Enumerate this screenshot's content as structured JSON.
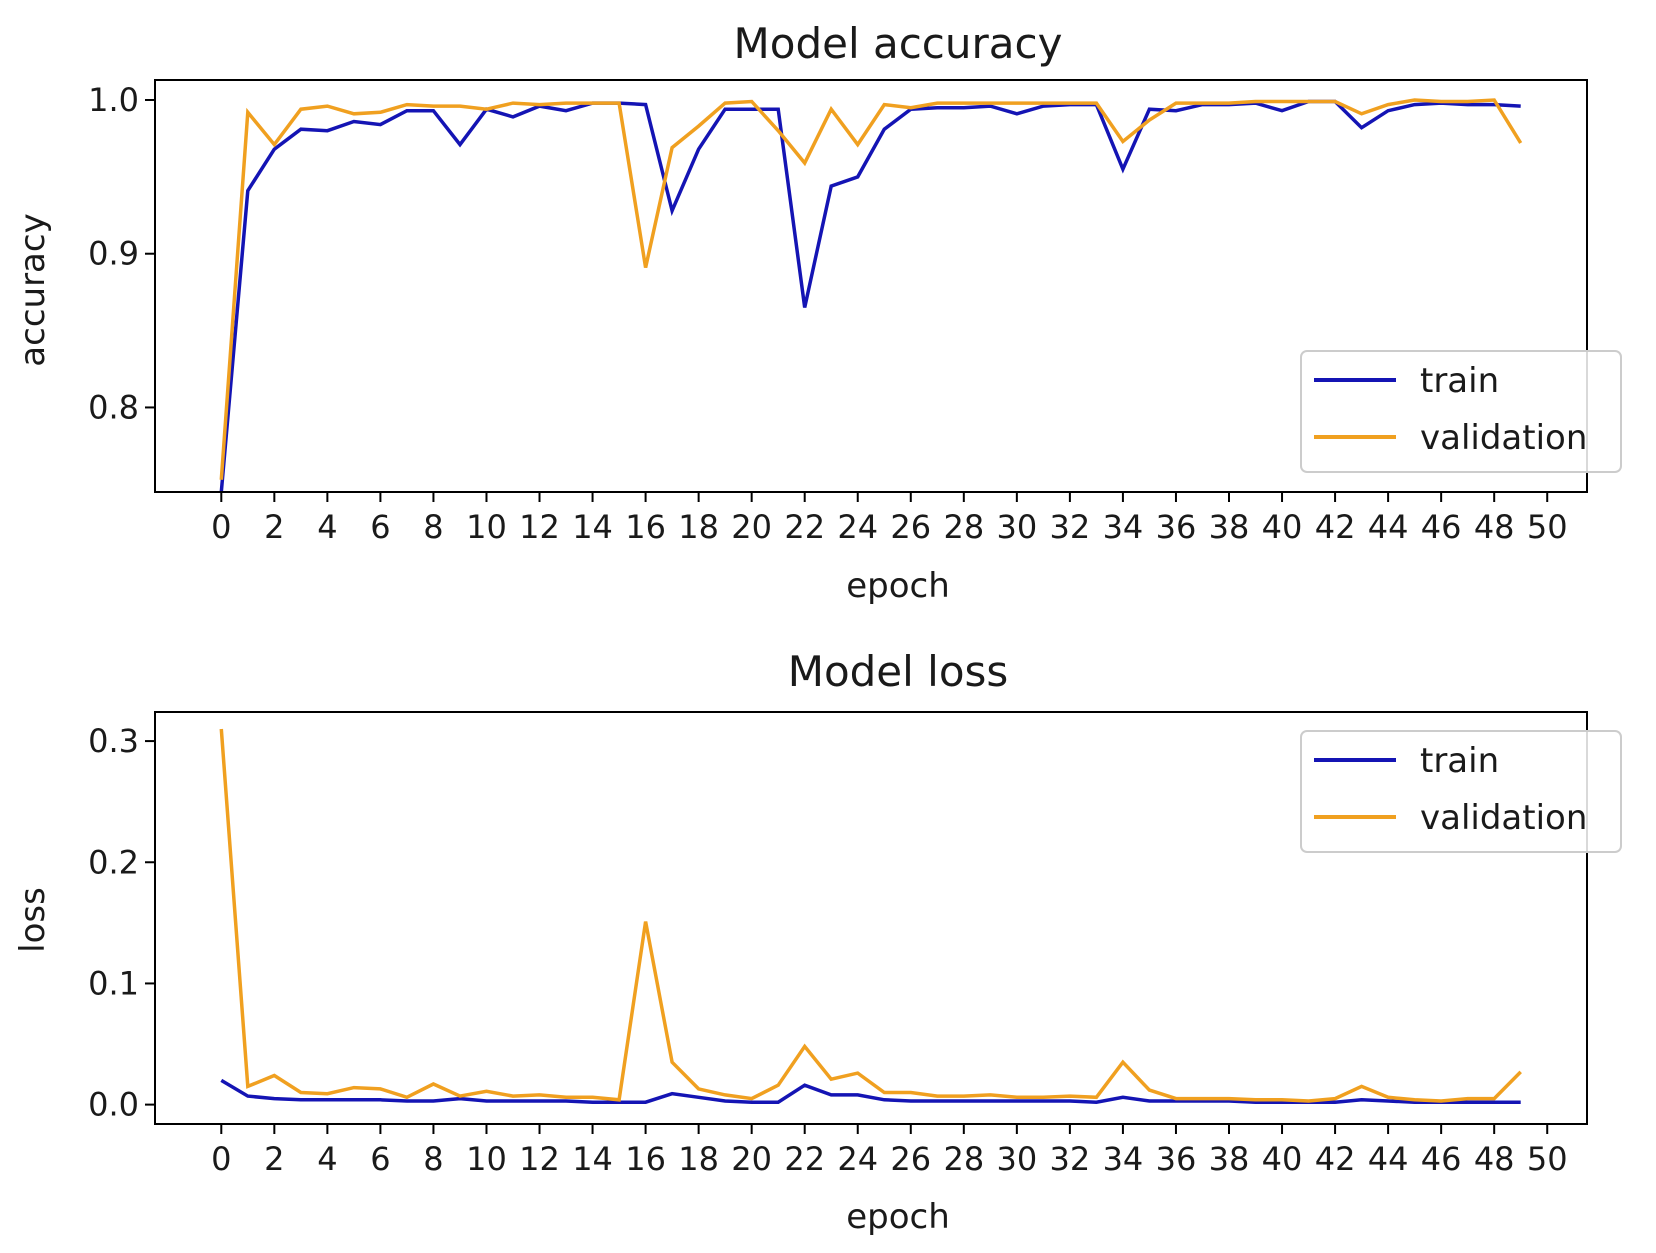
{
  "colors": {
    "train": "#1414b4",
    "validation": "#f0a020",
    "axes": "#000000",
    "legend_border": "#cccccc"
  },
  "chart_data": [
    {
      "type": "line",
      "title": "Model accuracy",
      "xlabel": "epoch",
      "ylabel": "accuracy",
      "xlim": [
        -2.5,
        51.5
      ],
      "ylim": [
        0.745,
        1.013
      ],
      "xticks": [
        0,
        2,
        4,
        6,
        8,
        10,
        12,
        14,
        16,
        18,
        20,
        22,
        24,
        26,
        28,
        30,
        32,
        34,
        36,
        38,
        40,
        42,
        44,
        46,
        48,
        50
      ],
      "yticks": [
        0.8,
        0.9,
        1.0
      ],
      "ytick_labels": [
        "0.8",
        "0.9",
        "1.0"
      ],
      "legend_loc": "lower-right",
      "x": [
        0,
        1,
        2,
        3,
        4,
        5,
        6,
        7,
        8,
        9,
        10,
        11,
        12,
        13,
        14,
        15,
        16,
        17,
        18,
        19,
        20,
        21,
        22,
        23,
        24,
        25,
        26,
        27,
        28,
        29,
        30,
        31,
        32,
        33,
        34,
        35,
        36,
        37,
        38,
        39,
        40,
        41,
        42,
        43,
        44,
        45,
        46,
        47,
        48,
        49
      ],
      "series": [
        {
          "name": "train",
          "color_key": "train",
          "values": [
            0.745,
            0.941,
            0.968,
            0.981,
            0.98,
            0.986,
            0.984,
            0.993,
            0.993,
            0.971,
            0.994,
            0.989,
            0.996,
            0.993,
            0.998,
            0.998,
            0.997,
            0.928,
            0.968,
            0.994,
            0.994,
            0.994,
            0.865,
            0.944,
            0.95,
            0.981,
            0.994,
            0.995,
            0.995,
            0.996,
            0.991,
            0.996,
            0.997,
            0.997,
            0.955,
            0.994,
            0.993,
            0.997,
            0.997,
            0.998,
            0.993,
            0.999,
            0.999,
            0.982,
            0.993,
            0.997,
            0.998,
            0.997,
            0.997,
            0.996
          ]
        },
        {
          "name": "validation",
          "color_key": "validation",
          "values": [
            0.753,
            0.992,
            0.971,
            0.994,
            0.996,
            0.991,
            0.992,
            0.997,
            0.996,
            0.996,
            0.994,
            0.998,
            0.997,
            0.998,
            0.998,
            0.998,
            0.891,
            0.969,
            0.983,
            0.998,
            0.999,
            0.98,
            0.959,
            0.994,
            0.971,
            0.997,
            0.995,
            0.998,
            0.998,
            0.998,
            0.998,
            0.998,
            0.998,
            0.998,
            0.973,
            0.987,
            0.998,
            0.998,
            0.998,
            0.999,
            0.999,
            0.999,
            0.999,
            0.991,
            0.997,
            1.0,
            0.999,
            0.999,
            1.0,
            0.972
          ]
        }
      ]
    },
    {
      "type": "line",
      "title": "Model loss",
      "xlabel": "epoch",
      "ylabel": "loss",
      "xlim": [
        -2.5,
        51.5
      ],
      "ylim": [
        -0.016,
        0.324
      ],
      "xticks": [
        0,
        2,
        4,
        6,
        8,
        10,
        12,
        14,
        16,
        18,
        20,
        22,
        24,
        26,
        28,
        30,
        32,
        34,
        36,
        38,
        40,
        42,
        44,
        46,
        48,
        50
      ],
      "yticks": [
        0.0,
        0.1,
        0.2,
        0.3
      ],
      "ytick_labels": [
        "0.0",
        "0.1",
        "0.2",
        "0.3"
      ],
      "legend_loc": "upper-right",
      "x": [
        0,
        1,
        2,
        3,
        4,
        5,
        6,
        7,
        8,
        9,
        10,
        11,
        12,
        13,
        14,
        15,
        16,
        17,
        18,
        19,
        20,
        21,
        22,
        23,
        24,
        25,
        26,
        27,
        28,
        29,
        30,
        31,
        32,
        33,
        34,
        35,
        36,
        37,
        38,
        39,
        40,
        41,
        42,
        43,
        44,
        45,
        46,
        47,
        48,
        49
      ],
      "series": [
        {
          "name": "train",
          "color_key": "train",
          "values": [
            0.02,
            0.007,
            0.005,
            0.004,
            0.004,
            0.004,
            0.004,
            0.003,
            0.003,
            0.005,
            0.003,
            0.003,
            0.003,
            0.003,
            0.002,
            0.002,
            0.002,
            0.009,
            0.006,
            0.003,
            0.002,
            0.002,
            0.016,
            0.008,
            0.008,
            0.004,
            0.003,
            0.003,
            0.003,
            0.003,
            0.003,
            0.003,
            0.003,
            0.002,
            0.006,
            0.003,
            0.003,
            0.003,
            0.003,
            0.002,
            0.002,
            0.002,
            0.002,
            0.004,
            0.003,
            0.002,
            0.002,
            0.002,
            0.002,
            0.002
          ]
        },
        {
          "name": "validation",
          "color_key": "validation",
          "values": [
            0.31,
            0.015,
            0.024,
            0.01,
            0.009,
            0.014,
            0.013,
            0.006,
            0.017,
            0.007,
            0.011,
            0.007,
            0.008,
            0.006,
            0.006,
            0.004,
            0.151,
            0.035,
            0.013,
            0.008,
            0.005,
            0.016,
            0.048,
            0.021,
            0.026,
            0.01,
            0.01,
            0.007,
            0.007,
            0.008,
            0.006,
            0.006,
            0.007,
            0.006,
            0.035,
            0.012,
            0.005,
            0.005,
            0.005,
            0.004,
            0.004,
            0.003,
            0.005,
            0.015,
            0.006,
            0.004,
            0.003,
            0.005,
            0.005,
            0.027
          ]
        }
      ]
    }
  ]
}
